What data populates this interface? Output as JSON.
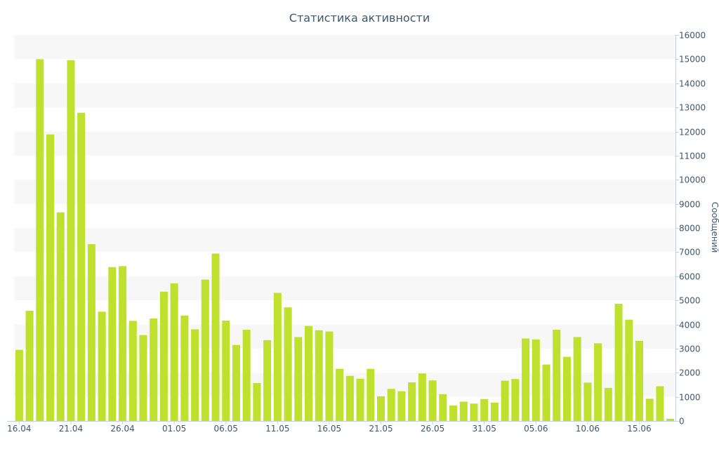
{
  "chart_data": {
    "type": "bar",
    "title": "Статистика активности",
    "xlabel": "",
    "ylabel": "Сообщений",
    "y_axis_side": "right",
    "ylim": [
      0,
      16000
    ],
    "y_ticks": [
      0,
      1000,
      2000,
      3000,
      4000,
      5000,
      6000,
      7000,
      8000,
      9000,
      10000,
      11000,
      12000,
      13000,
      14000,
      15000,
      16000
    ],
    "x_tick_labels": [
      "16.04",
      "21.04",
      "26.04",
      "01.05",
      "06.05",
      "11.05",
      "16.05",
      "21.05",
      "26.05",
      "31.05",
      "05.06",
      "10.06",
      "15.06"
    ],
    "grid": true,
    "colors": {
      "bar": "#bfe12e",
      "band": "#f7f7f7",
      "axis": "#c0d0e0",
      "text": "#3e576f"
    },
    "categories": [
      "16.04",
      "17.04",
      "18.04",
      "19.04",
      "20.04",
      "21.04",
      "22.04",
      "23.04",
      "24.04",
      "25.04",
      "26.04",
      "27.04",
      "28.04",
      "29.04",
      "30.04",
      "01.05",
      "02.05",
      "03.05",
      "04.05",
      "05.05",
      "06.05",
      "07.05",
      "08.05",
      "09.05",
      "10.05",
      "11.05",
      "12.05",
      "13.05",
      "14.05",
      "15.05",
      "16.05",
      "17.05",
      "18.05",
      "19.05",
      "20.05",
      "21.05",
      "22.05",
      "23.05",
      "24.05",
      "25.05",
      "26.05",
      "27.05",
      "28.05",
      "29.05",
      "30.05",
      "31.05",
      "01.06",
      "02.06",
      "03.06",
      "04.06",
      "05.06",
      "06.06",
      "07.06",
      "08.06",
      "09.06",
      "10.06",
      "11.06",
      "12.06",
      "13.06",
      "14.06",
      "15.06",
      "16.06",
      "17.06",
      "18.06"
    ],
    "values": [
      2950,
      4570,
      15000,
      11880,
      8650,
      14960,
      12780,
      7330,
      4530,
      6380,
      6420,
      4150,
      3560,
      4250,
      5360,
      5700,
      4370,
      3800,
      5860,
      6940,
      4160,
      3150,
      3780,
      1570,
      3350,
      5310,
      4710,
      3480,
      3940,
      3760,
      3710,
      2160,
      1870,
      1750,
      2160,
      1020,
      1330,
      1230,
      1600,
      1970,
      1680,
      1110,
      640,
      800,
      720,
      910,
      760,
      1670,
      1740,
      3420,
      3380,
      2340,
      3780,
      2660,
      3480,
      1590,
      3220,
      1370,
      4860,
      4200,
      3320,
      920,
      1440,
      90
    ]
  }
}
